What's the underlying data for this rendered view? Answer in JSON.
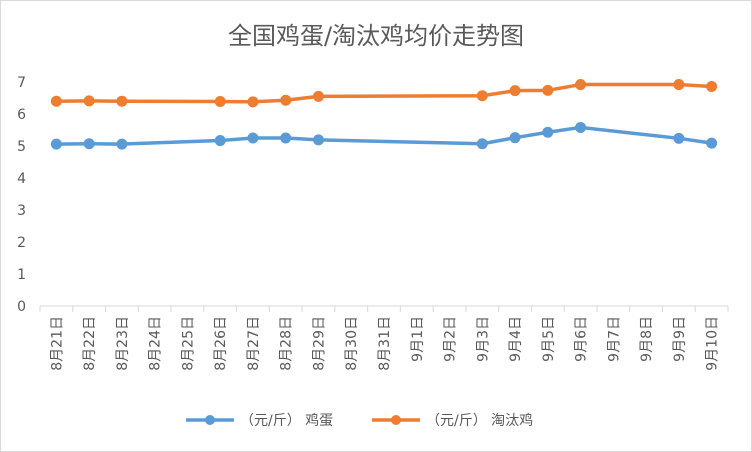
{
  "chart_data": {
    "type": "line",
    "title": "全国鸡蛋/淘汰鸡均价走势图",
    "categories": [
      "8月21日",
      "8月22日",
      "8月23日",
      "8月24日",
      "8月25日",
      "8月26日",
      "8月27日",
      "8月28日",
      "8月29日",
      "8月30日",
      "8月31日",
      "9月1日",
      "9月2日",
      "9月3日",
      "9月4日",
      "9月5日",
      "9月6日",
      "9月7日",
      "9月8日",
      "9月9日",
      "9月10日"
    ],
    "ylim": [
      0,
      7
    ],
    "yticks": [
      "0",
      "1",
      "2",
      "3",
      "4",
      "5",
      "6",
      "7"
    ],
    "grid": false,
    "legend": "bottom",
    "series": [
      {
        "name": "（元/斤） 鸡蛋",
        "color": "#5b9bd5",
        "points": [
          {
            "x": "8月21日",
            "y": 5.06
          },
          {
            "x": "8月22日",
            "y": 5.07
          },
          {
            "x": "8月23日",
            "y": 5.06
          },
          {
            "x": "8月26日",
            "y": 5.17
          },
          {
            "x": "8月27日",
            "y": 5.25
          },
          {
            "x": "8月28日",
            "y": 5.25
          },
          {
            "x": "8月29日",
            "y": 5.19
          },
          {
            "x": "9月3日",
            "y": 5.07
          },
          {
            "x": "9月4日",
            "y": 5.26
          },
          {
            "x": "9月5日",
            "y": 5.43
          },
          {
            "x": "9月6日",
            "y": 5.58
          },
          {
            "x": "9月9日",
            "y": 5.24
          },
          {
            "x": "9月10日",
            "y": 5.09
          }
        ]
      },
      {
        "name": "（元/斤） 淘汰鸡",
        "color": "#ed7d31",
        "points": [
          {
            "x": "8月21日",
            "y": 6.4
          },
          {
            "x": "8月22日",
            "y": 6.41
          },
          {
            "x": "8月23日",
            "y": 6.4
          },
          {
            "x": "8月26日",
            "y": 6.39
          },
          {
            "x": "8月27日",
            "y": 6.38
          },
          {
            "x": "8月28日",
            "y": 6.43
          },
          {
            "x": "8月29日",
            "y": 6.55
          },
          {
            "x": "9月3日",
            "y": 6.57
          },
          {
            "x": "9月4日",
            "y": 6.73
          },
          {
            "x": "9月5日",
            "y": 6.74
          },
          {
            "x": "9月6日",
            "y": 6.92
          },
          {
            "x": "9月9日",
            "y": 6.92
          },
          {
            "x": "9月10日",
            "y": 6.86
          }
        ]
      }
    ]
  }
}
